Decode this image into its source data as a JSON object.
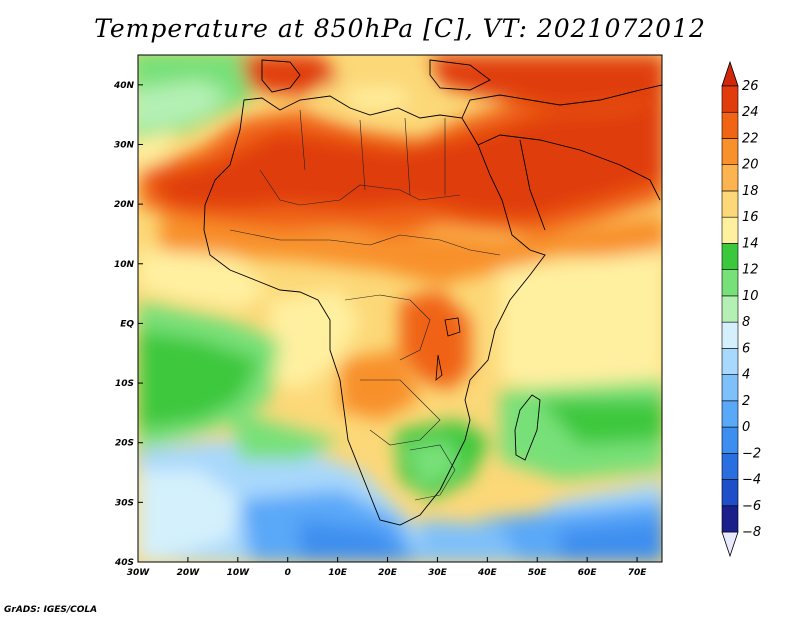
{
  "title": "Temperature at 850hPa [C], VT: 2021072012",
  "credit": "GrADS: IGES/COLA",
  "map": {
    "lon_range": [
      -30,
      75
    ],
    "lat_range": [
      -40,
      45
    ],
    "lon_ticks": [
      {
        "value": -30,
        "label": "30W"
      },
      {
        "value": -20,
        "label": "20W"
      },
      {
        "value": -10,
        "label": "10W"
      },
      {
        "value": 0,
        "label": "0"
      },
      {
        "value": 10,
        "label": "10E"
      },
      {
        "value": 20,
        "label": "20E"
      },
      {
        "value": 30,
        "label": "30E"
      },
      {
        "value": 40,
        "label": "40E"
      },
      {
        "value": 50,
        "label": "50E"
      },
      {
        "value": 60,
        "label": "60E"
      },
      {
        "value": 70,
        "label": "70E"
      }
    ],
    "lat_ticks": [
      {
        "value": 40,
        "label": "40N"
      },
      {
        "value": 30,
        "label": "30N"
      },
      {
        "value": 20,
        "label": "20N"
      },
      {
        "value": 10,
        "label": "10N"
      },
      {
        "value": 0,
        "label": "EQ"
      },
      {
        "value": -10,
        "label": "10S"
      },
      {
        "value": -20,
        "label": "20S"
      },
      {
        "value": -30,
        "label": "30S"
      },
      {
        "value": -40,
        "label": "40S"
      }
    ]
  },
  "colorbar": {
    "levels": [
      "-8",
      "-6",
      "-4",
      "-2",
      "0",
      "2",
      "4",
      "6",
      "8",
      "10",
      "12",
      "14",
      "16",
      "18",
      "20",
      "22",
      "24",
      "26"
    ],
    "colors": [
      "#1a1f8c",
      "#1e4fc8",
      "#2a6fe0",
      "#3c8ef0",
      "#5aa8f8",
      "#7ec0fa",
      "#a8d8fc",
      "#d4f0fc",
      "#b4f0b4",
      "#78e078",
      "#3cc83c",
      "#fff0a0",
      "#fcd878",
      "#fcb450",
      "#f8902c",
      "#f06414",
      "#e03c0c"
    ],
    "under_color": "#e8e8ff",
    "over_color": "#d02808"
  }
}
